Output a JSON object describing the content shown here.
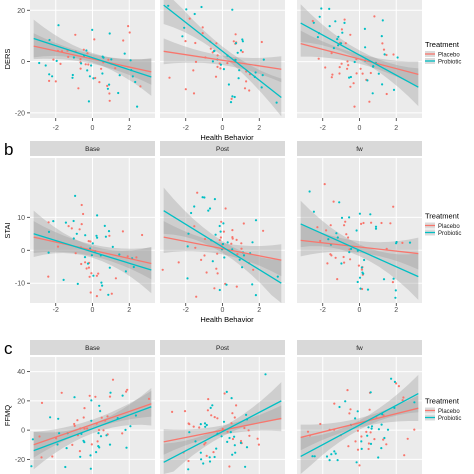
{
  "colors": {
    "placebo": "#F8766D",
    "probiotic": "#00BFC4",
    "panel_bg": "#EBEBEB",
    "strip_bg": "#D9D9D9",
    "grid": "#FFFFFF",
    "band": "#999999"
  },
  "chart_data": [
    {
      "type": "scatter",
      "panel_letter": "",
      "ylabel": "DERS",
      "xlabel": "Health Behavior",
      "facets": [],
      "xlim": [
        -3.4,
        3.4
      ],
      "ylim": [
        -22,
        24
      ],
      "xticks": [
        -2,
        0,
        2
      ],
      "xtick_labels": [
        "-2",
        "0",
        "2"
      ],
      "yticks": [
        -20,
        0,
        20
      ],
      "ytick_labels": [
        "-20",
        "0",
        "20"
      ],
      "grid": true,
      "legend": {
        "title": "Treatment",
        "placement": "right",
        "entries": [
          "Placebo",
          "Probiotic"
        ]
      },
      "series": [
        {
          "name": "Placebo",
          "color": "#F8766D",
          "fits": [
            {
              "x": [
                -3.2,
                3.2
              ],
              "y": [
                6,
                -4
              ]
            },
            {
              "x": [
                -3.2,
                3.2
              ],
              "y": [
                4,
                -3
              ]
            },
            {
              "x": [
                -3.2,
                3.2
              ],
              "y": [
                7,
                -5
              ]
            }
          ]
        },
        {
          "name": "Probiotic",
          "color": "#00BFC4",
          "fits": [
            {
              "x": [
                -3.2,
                3.2
              ],
              "y": [
                9,
                -6
              ]
            },
            {
              "x": [
                -3.2,
                3.2
              ],
              "y": [
                22,
                -14
              ]
            },
            {
              "x": [
                -3.2,
                3.2
              ],
              "y": [
                15,
                -10
              ]
            }
          ]
        }
      ]
    },
    {
      "type": "scatter",
      "panel_letter": "b",
      "ylabel": "STAI",
      "xlabel": "Health Behavior",
      "facets": [
        "Base",
        "Post",
        "fw"
      ],
      "xlim": [
        -3.4,
        3.4
      ],
      "ylim": [
        -16,
        28
      ],
      "xticks": [
        -2,
        0,
        2
      ],
      "xtick_labels": [
        "-2",
        "0",
        "2"
      ],
      "yticks": [
        -10,
        0,
        10
      ],
      "ytick_labels": [
        "-10",
        "0",
        "10"
      ],
      "grid": true,
      "legend": {
        "title": "Treatment",
        "placement": "right",
        "entries": [
          "Placebo",
          "Probiotic"
        ]
      },
      "series": [
        {
          "name": "Placebo",
          "color": "#F8766D",
          "fits": [
            {
              "x": [
                -3.2,
                3.2
              ],
              "y": [
                4,
                -4
              ]
            },
            {
              "x": [
                -3.2,
                3.2
              ],
              "y": [
                4,
                -3
              ]
            },
            {
              "x": [
                -3.2,
                3.2
              ],
              "y": [
                3,
                -1
              ]
            }
          ]
        },
        {
          "name": "Probiotic",
          "color": "#00BFC4",
          "fits": [
            {
              "x": [
                -3.2,
                3.2
              ],
              "y": [
                5,
                -6
              ]
            },
            {
              "x": [
                -3.2,
                3.2
              ],
              "y": [
                12,
                -10
              ]
            },
            {
              "x": [
                -3.2,
                3.2
              ],
              "y": [
                8,
                -8
              ]
            }
          ]
        }
      ]
    },
    {
      "type": "scatter",
      "panel_letter": "c",
      "ylabel": "FFMQ",
      "xlabel": "",
      "facets": [
        "Base",
        "Post",
        "fw"
      ],
      "xlim": [
        -3.4,
        3.4
      ],
      "ylim": [
        -30,
        50
      ],
      "xticks": [],
      "xtick_labels": [],
      "yticks": [
        -20,
        0,
        20,
        40
      ],
      "ytick_labels": [
        "-20",
        "0",
        "20",
        "40"
      ],
      "grid": true,
      "legend": {
        "title": "Treatment",
        "placement": "right",
        "entries": [
          "Placebo",
          "Probiotic"
        ]
      },
      "series": [
        {
          "name": "Placebo",
          "color": "#F8766D",
          "fits": [
            {
              "x": [
                -3.2,
                3.2
              ],
              "y": [
                -10,
                18
              ]
            },
            {
              "x": [
                -3.2,
                3.2
              ],
              "y": [
                -8,
                8
              ]
            },
            {
              "x": [
                -3.2,
                3.2
              ],
              "y": [
                -5,
                15
              ]
            }
          ]
        },
        {
          "name": "Probiotic",
          "color": "#00BFC4",
          "fits": [
            {
              "x": [
                -3.2,
                3.2
              ],
              "y": [
                -14,
                16
              ]
            },
            {
              "x": [
                -3.2,
                3.2
              ],
              "y": [
                -22,
                20
              ]
            },
            {
              "x": [
                -3.2,
                3.2
              ],
              "y": [
                -18,
                25
              ]
            }
          ]
        }
      ]
    }
  ]
}
